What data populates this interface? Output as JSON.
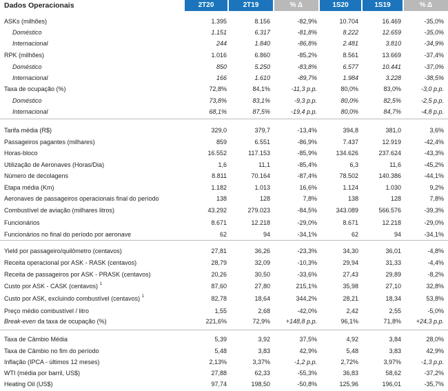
{
  "header": {
    "title": "Dados Operacionais",
    "columns": [
      "2T20",
      "2T19",
      "% Δ",
      "1S20",
      "1S19",
      "% Δ"
    ]
  },
  "rows": [
    {
      "label": "ASKs (milhões)",
      "v": [
        "1.395",
        "8.156",
        "-82,9%",
        "10.704",
        "16.469",
        "-35,0%"
      ]
    },
    {
      "label": "Doméstico",
      "v": [
        "1.151",
        "6.317",
        "-81,8%",
        "8.222",
        "12.659",
        "-35,0%"
      ]
    },
    {
      "label": "Internacional",
      "v": [
        "244",
        "1.840",
        "-86,8%",
        "2.481",
        "3.810",
        "-34,9%"
      ]
    },
    {
      "label": "RPK (milhões)",
      "v": [
        "1.016",
        "6.860",
        "-85,2%",
        "8.561",
        "13.669",
        "-37,4%"
      ]
    },
    {
      "label": "Doméstico",
      "v": [
        "850",
        "5.250",
        "-83,8%",
        "6.577",
        "10.441",
        "-37,0%"
      ]
    },
    {
      "label": "Internacional",
      "v": [
        "166",
        "1.610",
        "-89,7%",
        "1.984",
        "3.228",
        "-38,5%"
      ]
    },
    {
      "label": "Taxa de ocupação (%)",
      "v": [
        "72,8%",
        "84,1%",
        "-11,3 p.p.",
        "80,0%",
        "83,0%",
        "-3,0 p.p."
      ]
    },
    {
      "label": "Doméstico",
      "v": [
        "73,8%",
        "83,1%",
        "-9,3 p.p.",
        "80,0%",
        "82,5%",
        "-2,5 p.p."
      ]
    },
    {
      "label": "Internacional",
      "v": [
        "68,1%",
        "87,5%",
        "-19,4 p.p.",
        "80,0%",
        "84,7%",
        "-4,8 p.p."
      ]
    },
    {
      "label": "Tarifa média (R$)",
      "v": [
        "329,0",
        "379,7",
        "-13,4%",
        "394,8",
        "381,0",
        "3,6%"
      ]
    },
    {
      "label": "Passageiros pagantes (milhares)",
      "v": [
        "859",
        "6.551",
        "-86,9%",
        "7.437",
        "12.919",
        "-42,4%"
      ]
    },
    {
      "label": "Horas-bloco",
      "v": [
        "16.552",
        "117.153",
        "-85,9%",
        "134.626",
        "237.624",
        "-43,3%"
      ]
    },
    {
      "label": "Utilização de Aeronaves (Horas/Dia)",
      "v": [
        "1,6",
        "11,1",
        "-85,4%",
        "6,3",
        "11,6",
        "-45,2%"
      ]
    },
    {
      "label": "Número de decolagens",
      "v": [
        "8.811",
        "70.164",
        "-87,4%",
        "78.502",
        "140.386",
        "-44,1%"
      ]
    },
    {
      "label": "Etapa média (Km)",
      "v": [
        "1.182",
        "1.013",
        "16,6%",
        "1.124",
        "1.030",
        "9,2%"
      ]
    },
    {
      "label": "Aeronaves de passageiros operacionais final do período",
      "v": [
        "138",
        "128",
        "7,8%",
        "138",
        "128",
        "7,8%"
      ]
    },
    {
      "label": "Combustível de aviação (milhares litros)",
      "v": [
        "43.292",
        "279.023",
        "-84,5%",
        "343.089",
        "566.576",
        "-39,3%"
      ]
    },
    {
      "label": "Funcionários",
      "v": [
        "8.671",
        "12.218",
        "-29,0%",
        "8.671",
        "12.218",
        "-29,0%"
      ]
    },
    {
      "label": "Funcionários no final do período por aeronave",
      "v": [
        "62",
        "94",
        "-34,1%",
        "62",
        "94",
        "-34,1%"
      ]
    },
    {
      "label": "Yield por passageiro/quilômetro (centavos)",
      "v": [
        "27,81",
        "36,26",
        "-23,3%",
        "34,30",
        "36,01",
        "-4,8%"
      ]
    },
    {
      "label": "Receita operacional por ASK - RASK (centavos)",
      "v": [
        "28,79",
        "32,09",
        "-10,3%",
        "29,94",
        "31,33",
        "-4,4%"
      ]
    },
    {
      "label": "Receita de passageiros por ASK - PRASK (centavos)",
      "v": [
        "20,26",
        "30,50",
        "-33,6%",
        "27,43",
        "29,89",
        "-8,2%"
      ]
    },
    {
      "label": "Custo por ASK - CASK (centavos)",
      "note": "1",
      "v": [
        "87,60",
        "27,80",
        "215,1%",
        "35,98",
        "27,10",
        "32,8%"
      ]
    },
    {
      "label": "Custo por ASK, excluindo combustível (centavos)",
      "note": "1",
      "v": [
        "82,78",
        "18,64",
        "344,2%",
        "28,21",
        "18,34",
        "53,8%"
      ]
    },
    {
      "label": "Preço médio combustível / litro",
      "v": [
        "1,55",
        "2,68",
        "-42,0%",
        "2,42",
        "2,55",
        "-5,0%"
      ]
    },
    {
      "label_italic": "Break-even",
      "label": " da taxa de ocupação (%)",
      "v": [
        "221,6%",
        "72,9%",
        "+148,8 p.p.",
        "96,1%",
        "71,8%",
        "+24,3 p.p."
      ]
    },
    {
      "label": "Taxa de Câmbio Média",
      "v": [
        "5,39",
        "3,92",
        "37,5%",
        "4,92",
        "3,84",
        "28,0%"
      ]
    },
    {
      "label": "Taxa de Câmbio no fim do período",
      "v": [
        "5,48",
        "3,83",
        "42,9%",
        "5,48",
        "3,83",
        "42,9%"
      ]
    },
    {
      "label": "Inflação (IPCA - últimos 12 meses)",
      "v": [
        "2,13%",
        "3,37%",
        "-1,2 p.p.",
        "2,72%",
        "3,97%",
        "-1,3 p.p."
      ]
    },
    {
      "label": "WTI (média por barril, US$)",
      "v": [
        "27,88",
        "62,33",
        "-55,3%",
        "36,83",
        "58,62",
        "-37,2%"
      ]
    },
    {
      "label": "Heating Oil (US$)",
      "v": [
        "97,74",
        "198,50",
        "-50,8%",
        "125,96",
        "196,01",
        "-35,7%"
      ]
    }
  ]
}
